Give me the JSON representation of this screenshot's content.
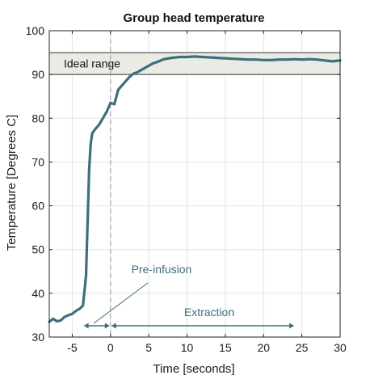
{
  "chart_data": {
    "type": "line",
    "title": "Group head temperature",
    "xlabel": "Time [seconds]",
    "ylabel": "Temperature [Degrees C]",
    "xlim": [
      -8,
      30
    ],
    "ylim": [
      30,
      100
    ],
    "xticks": [
      -5,
      0,
      5,
      10,
      15,
      20,
      25,
      30
    ],
    "yticks": [
      30,
      40,
      50,
      60,
      70,
      80,
      90,
      100
    ],
    "grid": true,
    "colors": {
      "line": "#3d6f7c",
      "band_fill": "#e9ebe5",
      "band_edge": "#333333",
      "annotation": "#3d6f7c",
      "grid": "#e3e3e3"
    },
    "ideal_range": {
      "label": "Ideal range",
      "ymin": 90,
      "ymax": 95
    },
    "vline": {
      "x": 0
    },
    "annotations": {
      "preinfusion": {
        "label": "Pre-infusion",
        "x_start": -3.5,
        "x_end": 0
      },
      "extraction": {
        "label": "Extraction",
        "x_start": 0,
        "x_end": 24
      }
    },
    "series": [
      {
        "x": [
          -8,
          -7.5,
          -7,
          -6.5,
          -6,
          -5.5,
          -5,
          -4.5,
          -4,
          -3.6,
          -3.2,
          -3,
          -2.8,
          -2.6,
          -2.4,
          -2.2,
          -2,
          -1.5,
          -1,
          -0.5,
          0,
          0.5,
          1,
          1.5,
          2,
          2.5,
          3,
          3.5,
          4,
          4.5,
          5,
          5.5,
          6,
          7,
          8,
          9,
          10,
          11,
          12,
          13,
          14,
          15,
          16,
          17,
          18,
          19,
          20,
          21,
          22,
          23,
          24,
          25,
          26,
          27,
          28,
          29,
          30
        ],
        "y": [
          33.5,
          34.2,
          33.6,
          33.8,
          34.6,
          35.0,
          35.3,
          36.0,
          36.5,
          37.2,
          44,
          56,
          68,
          74,
          76.5,
          77.0,
          77.5,
          78.5,
          80.0,
          81.5,
          83.5,
          83.2,
          86.5,
          87.5,
          88.5,
          89.5,
          90.2,
          90.5,
          91.0,
          91.5,
          92.0,
          92.5,
          92.8,
          93.5,
          93.8,
          94.0,
          94.0,
          94.1,
          94.0,
          93.9,
          93.8,
          93.7,
          93.6,
          93.5,
          93.4,
          93.4,
          93.3,
          93.3,
          93.4,
          93.4,
          93.5,
          93.4,
          93.5,
          93.4,
          93.2,
          93.0,
          93.2
        ]
      }
    ]
  }
}
